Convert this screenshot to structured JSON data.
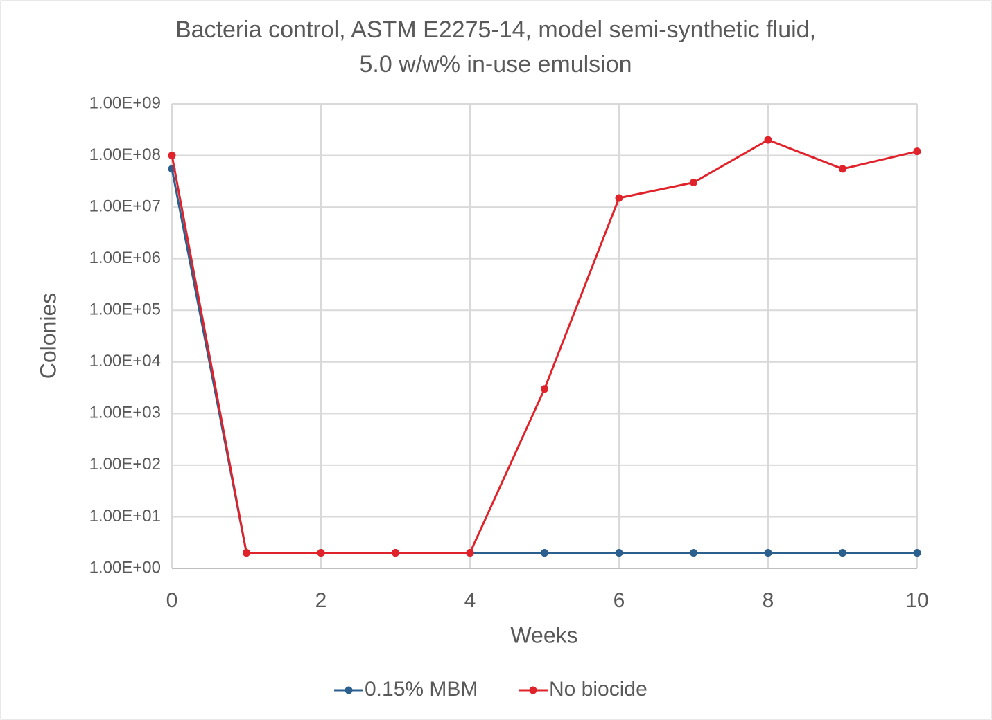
{
  "chart_data": {
    "type": "line",
    "title": [
      "Bacteria control, ASTM E2275-14, model semi-synthetic fluid,",
      "5.0 w/w% in-use emulsion"
    ],
    "x_label": "Weeks",
    "y_label": "Colonies",
    "x": [
      0,
      1,
      2,
      3,
      4,
      5,
      6,
      7,
      8,
      9,
      10
    ],
    "series": [
      {
        "name": "0.15% MBM",
        "color": "#2b5f8e",
        "values": [
          55000000,
          2,
          2,
          2,
          2,
          2,
          2,
          2,
          2,
          2,
          2
        ]
      },
      {
        "name": "No biocide",
        "color": "#e0232b",
        "values": [
          100000000,
          2,
          2,
          2,
          2,
          3000,
          15000000,
          30000000,
          200000000,
          55000000,
          120000000
        ]
      }
    ],
    "xlim": [
      0,
      10
    ],
    "xticks": [
      0,
      2,
      4,
      6,
      8,
      10
    ],
    "ylim": [
      1,
      1000000000
    ],
    "yscale": "log",
    "yticks": [
      {
        "value": 1,
        "label": "1.00E+00"
      },
      {
        "value": 10,
        "label": "1.00E+01"
      },
      {
        "value": 100,
        "label": "1.00E+02"
      },
      {
        "value": 1000,
        "label": "1.00E+03"
      },
      {
        "value": 10000,
        "label": "1.00E+04"
      },
      {
        "value": 100000,
        "label": "1.00E+05"
      },
      {
        "value": 1000000,
        "label": "1.00E+06"
      },
      {
        "value": 10000000,
        "label": "1.00E+07"
      },
      {
        "value": 100000000,
        "label": "1.00E+08"
      },
      {
        "value": 1000000000,
        "label": "1.00E+09"
      }
    ],
    "grid": true,
    "legend": "bottom"
  }
}
